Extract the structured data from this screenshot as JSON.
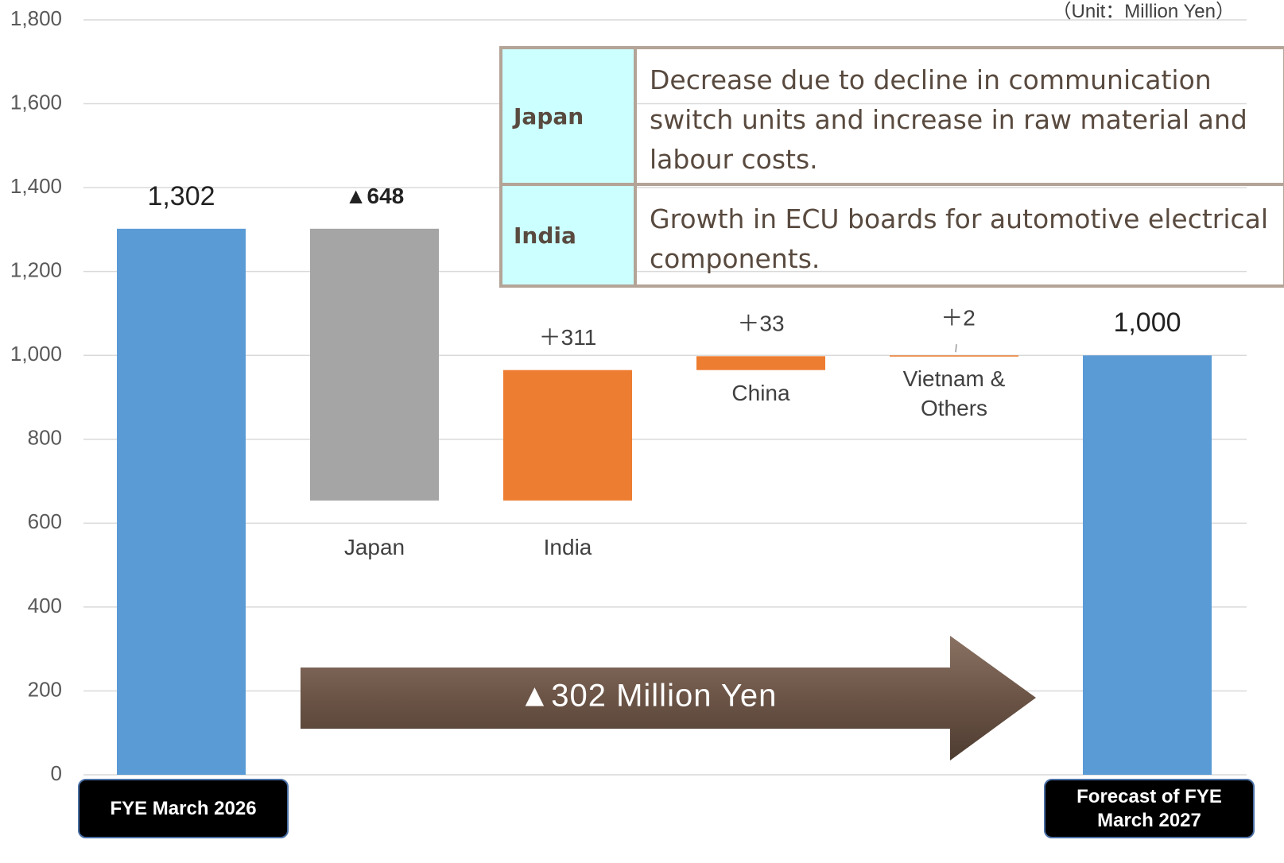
{
  "chart_data": {
    "type": "waterfall",
    "unit_note": "（Unit：Million Yen）",
    "categories": [
      "FYE March 2026",
      "Japan",
      "India",
      "China",
      "Vietnam & Others",
      "Forecast of FYE March 2027"
    ],
    "values": [
      1302,
      -648,
      311,
      33,
      2,
      1000
    ],
    "value_labels": [
      "1,302",
      "▲648",
      "＋311",
      "＋33",
      "＋2",
      "1,000"
    ],
    "is_total": [
      true,
      false,
      false,
      false,
      false,
      true
    ],
    "colors": [
      "#5b9bd5",
      "#a5a5a5",
      "#ed7d31",
      "#ed7d31",
      "#ed7d31",
      "#5b9bd5"
    ],
    "ylim": [
      0,
      1800
    ],
    "yticks": [
      0,
      200,
      400,
      600,
      800,
      {
        "value": 1000,
        "label": "1,000"
      },
      {
        "value": 1200,
        "label": "1,200"
      },
      {
        "value": 1400,
        "label": "1,400"
      },
      {
        "value": 1600,
        "label": "1,600"
      },
      {
        "value": 1800,
        "label": "1,800"
      }
    ],
    "grid": true,
    "change_label": "▲302 Million Yen",
    "notes": [
      {
        "region": "Japan",
        "text": "Decrease due to decline in communication switch units and increase in raw material and labour costs."
      },
      {
        "region": "India",
        "text": "Growth in ECU boards for automotive electrical components."
      }
    ]
  }
}
